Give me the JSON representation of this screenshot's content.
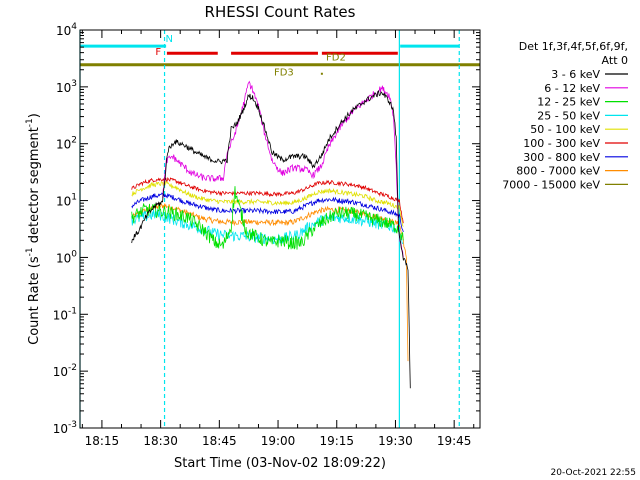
{
  "chart_data": {
    "type": "line",
    "title": "RHESSI Count Rates",
    "xlabel": "Start Time (03-Nov-02 18:09:22)",
    "ylabel_main": "Count Rate (s",
    "ylabel_sup1": "-1",
    "ylabel_mid": " detector segment",
    "ylabel_sup2": "-1",
    "ylabel_end": ")",
    "yscale": "log",
    "ylim_exp": [
      -3,
      4
    ],
    "xlim_min": [
      1089.4,
      1191.6
    ],
    "grid": false,
    "x_ticks": [
      {
        "label": "18:15",
        "t": 1095
      },
      {
        "label": "18:30",
        "t": 1110
      },
      {
        "label": "18:45",
        "t": 1125
      },
      {
        "label": "19:00",
        "t": 1140
      },
      {
        "label": "19:15",
        "t": 1155
      },
      {
        "label": "19:30",
        "t": 1170
      },
      {
        "label": "19:45",
        "t": 1185
      }
    ],
    "y_ticks": [
      {
        "base": "10",
        "exp": "-3",
        "e": -3
      },
      {
        "base": "10",
        "exp": "-2",
        "e": -2
      },
      {
        "base": "10",
        "exp": "-1",
        "e": -1
      },
      {
        "base": "10",
        "exp": "0",
        "e": 0
      },
      {
        "base": "10",
        "exp": "1",
        "e": 1
      },
      {
        "base": "10",
        "exp": "2",
        "e": 2
      },
      {
        "base": "10",
        "exp": "3",
        "e": 3
      },
      {
        "base": "10",
        "exp": "4",
        "e": 4
      }
    ],
    "vlines": [
      {
        "t": 1089.4,
        "style": "solid",
        "color": "#00e5ee"
      },
      {
        "t": 1111.0,
        "style": "dashed",
        "color": "#00e5ee"
      },
      {
        "t": 1171.0,
        "style": "solid",
        "color": "#00e5ee"
      },
      {
        "t": 1186.3,
        "style": "dashed",
        "color": "#00e5ee"
      }
    ],
    "status_bands": [
      {
        "label": "N",
        "color": "#00e5ee",
        "y": 5200,
        "segments": [
          [
            1089.4,
            1111.4
          ],
          [
            1171.2,
            1186.3
          ]
        ],
        "label_t": 1112.2,
        "label_y": 6100
      },
      {
        "label": "F",
        "color": "#e00000",
        "y": 3900,
        "segments": [
          [
            1111.6,
            1124.6
          ],
          [
            1128.0,
            1150.2
          ],
          [
            1151.2,
            1170.6
          ]
        ],
        "label_t": 1109.4,
        "label_y": 3600
      },
      {
        "label": "FD3",
        "color": "#808000",
        "y": 2450,
        "segments": [
          [
            1089.4,
            1191.6
          ]
        ],
        "label_t": 1141.5,
        "label_y": 1600
      },
      {
        "label": "FD2",
        "color": "#808000",
        "y": 2600,
        "segments": [],
        "label_t": 1154.8,
        "label_y": 2900
      }
    ],
    "legend_header": [
      "Det 1f,3f,4f,5f,6f,9f,",
      "Att 0"
    ],
    "series": [
      {
        "name": "3 - 6 keV",
        "color": "#000000",
        "keypoints": [
          [
            1102.6,
            2.0
          ],
          [
            1104.5,
            3.0
          ],
          [
            1106.5,
            5.5
          ],
          [
            1108.5,
            8.0
          ],
          [
            1110.5,
            9.5
          ],
          [
            1111.8,
            75
          ],
          [
            1113.5,
            110
          ],
          [
            1116,
            95
          ],
          [
            1119,
            70
          ],
          [
            1122,
            55
          ],
          [
            1125,
            48
          ],
          [
            1127,
            52
          ],
          [
            1128,
            180
          ],
          [
            1129.5,
            230
          ],
          [
            1131,
            380
          ],
          [
            1132.5,
            700
          ],
          [
            1133.5,
            650
          ],
          [
            1135,
            420
          ],
          [
            1136.5,
            200
          ],
          [
            1138.5,
            70
          ],
          [
            1141,
            52
          ],
          [
            1144,
            60
          ],
          [
            1147,
            60
          ],
          [
            1149,
            40
          ],
          [
            1151,
            60
          ],
          [
            1153,
            120
          ],
          [
            1156,
            230
          ],
          [
            1159,
            380
          ],
          [
            1162,
            550
          ],
          [
            1164.5,
            700
          ],
          [
            1166.5,
            800
          ],
          [
            1168.5,
            550
          ],
          [
            1169.5,
            380
          ],
          [
            1170.2,
            120
          ],
          [
            1170.8,
            3
          ],
          [
            1172,
            1.0
          ],
          [
            1173.2,
            0.6
          ],
          [
            1173.8,
            0.005
          ]
        ]
      },
      {
        "name": "6 - 12 keV",
        "color": "#e000e0",
        "keypoints": [
          [
            1110.5,
            12
          ],
          [
            1111.5,
            50
          ],
          [
            1113,
            60
          ],
          [
            1115,
            45
          ],
          [
            1118,
            30
          ],
          [
            1121,
            25
          ],
          [
            1124,
            24
          ],
          [
            1126,
            25
          ],
          [
            1127,
            70
          ],
          [
            1128.5,
            120
          ],
          [
            1130,
            250
          ],
          [
            1131.5,
            600
          ],
          [
            1132.5,
            1200
          ],
          [
            1133.5,
            900
          ],
          [
            1135,
            450
          ],
          [
            1136.5,
            160
          ],
          [
            1138.5,
            50
          ],
          [
            1141,
            30
          ],
          [
            1144,
            38
          ],
          [
            1147,
            35
          ],
          [
            1149,
            28
          ],
          [
            1151,
            40
          ],
          [
            1153,
            90
          ],
          [
            1156,
            200
          ],
          [
            1159,
            360
          ],
          [
            1162,
            550
          ],
          [
            1164.5,
            750
          ],
          [
            1166.5,
            950
          ],
          [
            1168.5,
            700
          ],
          [
            1169.5,
            300
          ],
          [
            1170.2,
            40
          ],
          [
            1170.8,
            3
          ],
          [
            1172,
            1.0
          ]
        ]
      },
      {
        "name": "12 - 25 keV",
        "color": "#00e000",
        "keypoints": [
          [
            1102.6,
            5
          ],
          [
            1106,
            7
          ],
          [
            1110,
            6.5
          ],
          [
            1113,
            6
          ],
          [
            1117,
            5
          ],
          [
            1121,
            3
          ],
          [
            1124,
            1.8
          ],
          [
            1126,
            1.6
          ],
          [
            1128,
            3.5
          ],
          [
            1129,
            15
          ],
          [
            1130,
            8
          ],
          [
            1132,
            2.8
          ],
          [
            1135,
            2.2
          ],
          [
            1138,
            1.8
          ],
          [
            1141,
            2.0
          ],
          [
            1143,
            1.8
          ],
          [
            1146,
            1.8
          ],
          [
            1149,
            3.2
          ],
          [
            1152,
            4.5
          ],
          [
            1155,
            6.0
          ],
          [
            1158,
            6.0
          ],
          [
            1161,
            5.5
          ],
          [
            1164,
            4.8
          ],
          [
            1167,
            4.2
          ],
          [
            1170,
            3.5
          ],
          [
            1171,
            3.2
          ],
          [
            1172,
            2.0
          ]
        ]
      },
      {
        "name": "25 - 50 keV",
        "color": "#00e5ee",
        "keypoints": [
          [
            1102.6,
            4.5
          ],
          [
            1106,
            5.2
          ],
          [
            1109,
            5.8
          ],
          [
            1112,
            5.0
          ],
          [
            1115,
            4.2
          ],
          [
            1118,
            3.6
          ],
          [
            1121,
            3.1
          ],
          [
            1124,
            2.6
          ],
          [
            1127,
            2.4
          ],
          [
            1130,
            2.4
          ],
          [
            1133,
            2.3
          ],
          [
            1136,
            2.2
          ],
          [
            1139,
            2.1
          ],
          [
            1142,
            2.2
          ],
          [
            1145,
            2.5
          ],
          [
            1148,
            3.5
          ],
          [
            1151,
            4.5
          ],
          [
            1154,
            5.0
          ],
          [
            1157,
            5.0
          ],
          [
            1160,
            4.7
          ],
          [
            1163,
            4.3
          ],
          [
            1166,
            3.8
          ],
          [
            1169,
            3.5
          ],
          [
            1171,
            3.0
          ],
          [
            1172,
            1.8
          ]
        ]
      },
      {
        "name": "50 - 100 keV",
        "color": "#e0e000",
        "keypoints": [
          [
            1102.6,
            13
          ],
          [
            1105,
            16
          ],
          [
            1108,
            19
          ],
          [
            1111,
            20
          ],
          [
            1114,
            17
          ],
          [
            1117,
            13
          ],
          [
            1120,
            11
          ],
          [
            1123,
            10
          ],
          [
            1126,
            9.5
          ],
          [
            1129,
            9.5
          ],
          [
            1132,
            9.5
          ],
          [
            1135,
            9.5
          ],
          [
            1138,
            9.2
          ],
          [
            1141,
            9.0
          ],
          [
            1144,
            9.2
          ],
          [
            1147,
            11
          ],
          [
            1150,
            14
          ],
          [
            1153,
            15
          ],
          [
            1156,
            14
          ],
          [
            1159,
            13
          ],
          [
            1162,
            12
          ],
          [
            1165,
            10
          ],
          [
            1168,
            9
          ],
          [
            1171,
            7.5
          ],
          [
            1172,
            3.5
          ]
        ]
      },
      {
        "name": "100 - 300 keV",
        "color": "#e00000",
        "keypoints": [
          [
            1102.6,
            16
          ],
          [
            1105,
            20
          ],
          [
            1108,
            23
          ],
          [
            1111,
            24
          ],
          [
            1114,
            22
          ],
          [
            1117,
            18
          ],
          [
            1120,
            15.5
          ],
          [
            1123,
            14
          ],
          [
            1126,
            13.5
          ],
          [
            1129,
            13.5
          ],
          [
            1132,
            13.5
          ],
          [
            1135,
            13.5
          ],
          [
            1138,
            13
          ],
          [
            1141,
            13
          ],
          [
            1144,
            13.5
          ],
          [
            1147,
            16
          ],
          [
            1150,
            20
          ],
          [
            1153,
            21
          ],
          [
            1156,
            20
          ],
          [
            1159,
            19
          ],
          [
            1162,
            17
          ],
          [
            1165,
            14
          ],
          [
            1168,
            12
          ],
          [
            1171,
            10
          ],
          [
            1172,
            4
          ]
        ]
      },
      {
        "name": "300 - 800 keV",
        "color": "#0000e0",
        "keypoints": [
          [
            1102.6,
            8
          ],
          [
            1105,
            10
          ],
          [
            1108,
            12
          ],
          [
            1111,
            12.5
          ],
          [
            1114,
            11
          ],
          [
            1117,
            9
          ],
          [
            1120,
            8
          ],
          [
            1123,
            7
          ],
          [
            1126,
            6.6
          ],
          [
            1129,
            6.6
          ],
          [
            1132,
            6.6
          ],
          [
            1135,
            6.6
          ],
          [
            1138,
            6.4
          ],
          [
            1141,
            6.3
          ],
          [
            1144,
            6.5
          ],
          [
            1147,
            8
          ],
          [
            1150,
            10
          ],
          [
            1153,
            10.5
          ],
          [
            1156,
            10
          ],
          [
            1159,
            9.5
          ],
          [
            1162,
            8.5
          ],
          [
            1165,
            7.5
          ],
          [
            1168,
            6.5
          ],
          [
            1171,
            5.5
          ],
          [
            1172,
            2.8
          ]
        ]
      },
      {
        "name": "800 - 7000 keV",
        "color": "#ff8c00",
        "keypoints": [
          [
            1102.6,
            5
          ],
          [
            1105,
            6.2
          ],
          [
            1108,
            7.5
          ],
          [
            1111,
            8.2
          ],
          [
            1114,
            7.2
          ],
          [
            1117,
            6
          ],
          [
            1120,
            5
          ],
          [
            1123,
            4.5
          ],
          [
            1126,
            4.2
          ],
          [
            1129,
            4.2
          ],
          [
            1132,
            4.2
          ],
          [
            1135,
            4.2
          ],
          [
            1138,
            4.1
          ],
          [
            1141,
            4.0
          ],
          [
            1144,
            4.2
          ],
          [
            1147,
            5.2
          ],
          [
            1150,
            6.5
          ],
          [
            1153,
            7
          ],
          [
            1156,
            6.8
          ],
          [
            1159,
            6.5
          ],
          [
            1162,
            5.8
          ],
          [
            1165,
            5.2
          ],
          [
            1168,
            4.5
          ],
          [
            1171,
            3.8
          ],
          [
            1172,
            2.0
          ],
          [
            1172.8,
            0.9
          ],
          [
            1173.2,
            0.015
          ]
        ]
      },
      {
        "name": "7000 - 15000 keV",
        "color": "#808000",
        "keypoints": []
      }
    ]
  },
  "footer": {
    "timestamp": "20-Oct-2021 22:55"
  }
}
